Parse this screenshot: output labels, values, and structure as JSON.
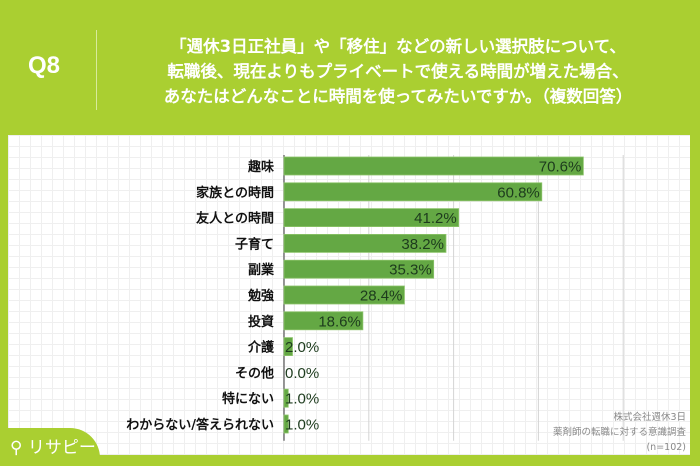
{
  "header": {
    "question_no": "Q8",
    "title_lines": [
      "「週休3日正社員」や「移住」などの新しい選択肢について、",
      "転職後、現在よりもプライベートで使える時間が増えた場合、",
      "あなたはどんなことに時間を使ってみたいですか。（複数回答）"
    ]
  },
  "source": {
    "lines": [
      "株式会社週休3日",
      "薬剤師の転職に対する意識調査",
      "(n=102)"
    ]
  },
  "logo": {
    "text": "リサピー"
  },
  "colors": {
    "bar": "#64a844",
    "background": "#aacf31"
  },
  "chart_data": {
    "type": "bar",
    "orientation": "horizontal",
    "unit": "%",
    "categories": [
      "趣味",
      "家族との時間",
      "友人との時間",
      "子育て",
      "副業",
      "勉強",
      "投資",
      "介護",
      "その他",
      "特にない",
      "わからない/答えられない"
    ],
    "values": [
      70.6,
      60.8,
      41.2,
      38.2,
      35.3,
      28.4,
      18.6,
      2.0,
      0.0,
      1.0,
      1.0
    ],
    "labels": [
      "70.6%",
      "60.8%",
      "41.2%",
      "38.2%",
      "35.3%",
      "28.4%",
      "18.6%",
      "2.0%",
      "0.0%",
      "1.0%",
      "1.0%"
    ],
    "xlim": [
      0,
      100
    ],
    "grid_step": 20,
    "grid": true
  }
}
